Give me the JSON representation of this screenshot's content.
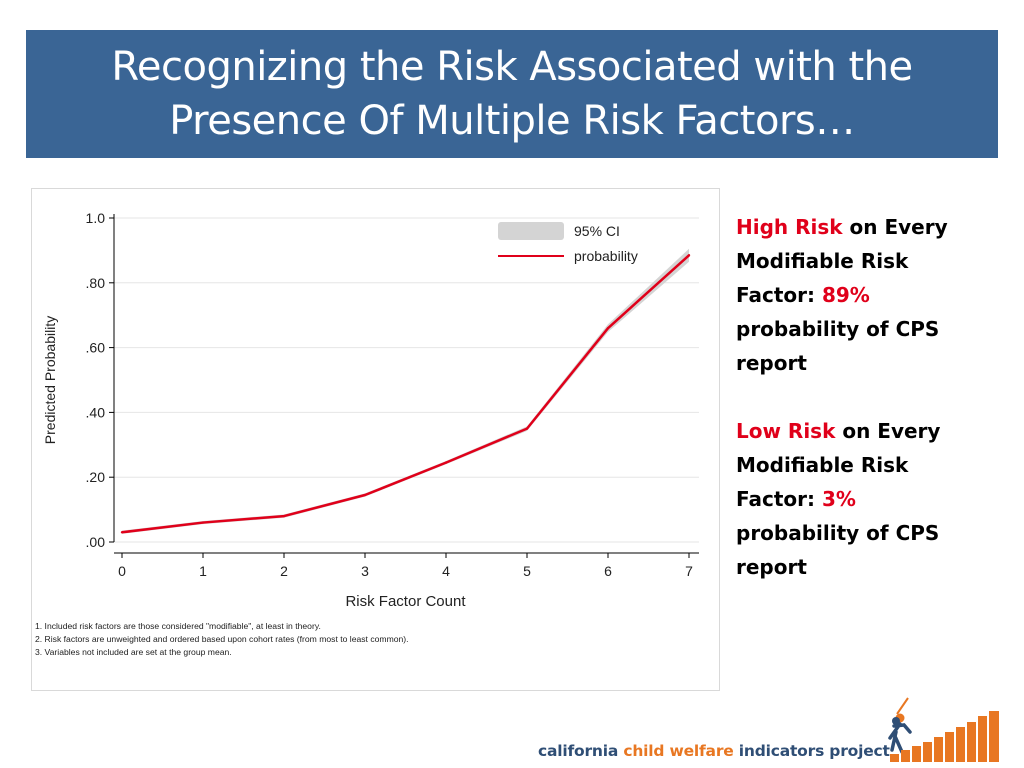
{
  "header": {
    "title_line1": "Recognizing the Risk Associated with the",
    "title_line2": "Presence Of Multiple Risk Factors…"
  },
  "chart_data": {
    "type": "line",
    "xlabel": "Risk Factor Count",
    "ylabel": "Predicted Probability",
    "x": [
      0,
      1,
      2,
      3,
      4,
      5,
      6,
      7
    ],
    "xticks": [
      "0",
      "1",
      "2",
      "3",
      "4",
      "5",
      "6",
      "7"
    ],
    "yticks": [
      ".00",
      ".20",
      ".40",
      ".60",
      ".80",
      "1.0"
    ],
    "xlim": [
      0,
      7
    ],
    "ylim": [
      0,
      1.0
    ],
    "grid": true,
    "legend_position": "top-right",
    "series": [
      {
        "name": "probability",
        "values": [
          0.03,
          0.06,
          0.08,
          0.145,
          0.245,
          0.35,
          0.66,
          0.885
        ],
        "color": "#e0001a"
      }
    ],
    "ci_band": {
      "name": "95% CI",
      "lower": [
        0.025,
        0.055,
        0.075,
        0.14,
        0.24,
        0.343,
        0.648,
        0.865
      ],
      "upper": [
        0.035,
        0.065,
        0.085,
        0.15,
        0.25,
        0.357,
        0.672,
        0.905
      ],
      "color": "#d4d4d4"
    },
    "notes": [
      "1. Included risk factors are those considered \"modifiable\", at least in theory.",
      "2. Risk factors are unweighted and ordered based upon cohort rates (from most to least common).",
      "3. Variables not included are set at the group mean."
    ]
  },
  "side": {
    "high_label": "High Risk",
    "high_rest": " on Every Modifiable Risk Factor: ",
    "high_value": "89%",
    "high_tail": " probability of CPS report",
    "low_label": "Low Risk",
    "low_rest": " on Every Modifiable Risk Factor: ",
    "low_value": "3%",
    "low_tail": " probability of CPS report"
  },
  "footer": {
    "logo_dark1": "california ",
    "logo_orange": "child welfare",
    "logo_dark2": " indicators project"
  },
  "colors": {
    "banner": "#3a6595",
    "accent_red": "#e0001a",
    "logo_orange": "#e87722",
    "logo_dark": "#2f4e75"
  }
}
